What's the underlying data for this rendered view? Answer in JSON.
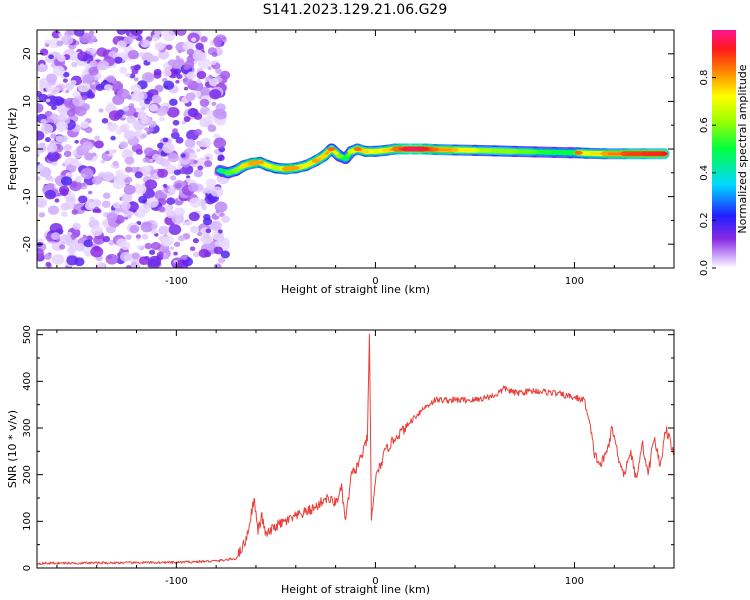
{
  "figure": {
    "title": "S141.2023.129.21.06.G29"
  },
  "chart_data": [
    {
      "type": "heatmap",
      "xlabel": "Height of straight line (km)",
      "ylabel": "Frequency (Hz)",
      "xlim": [
        -170,
        150
      ],
      "ylim": [
        -25,
        25
      ],
      "x_ticks": [
        -100,
        0,
        100
      ],
      "y_ticks": [
        -20,
        -10,
        0,
        10,
        20
      ],
      "colorbar": {
        "label": "Normalized spectral amplitude",
        "ticks": [
          "0.0",
          "0.2",
          "0.4",
          "0.6",
          "0.8"
        ],
        "range": [
          0,
          1
        ],
        "colormap": "rainbow (white-violet-blue-cyan-green-yellow-red-magenta)"
      },
      "noise_region_x": [
        -170,
        -75
      ],
      "signal_track": [
        {
          "x": -78,
          "y": -4.5,
          "v": 0.45
        },
        {
          "x": -74,
          "y": -5.0,
          "v": 0.55
        },
        {
          "x": -70,
          "y": -4.5,
          "v": 0.6
        },
        {
          "x": -66,
          "y": -3.5,
          "v": 0.75
        },
        {
          "x": -62,
          "y": -3.0,
          "v": 0.8
        },
        {
          "x": -58,
          "y": -2.8,
          "v": 0.8
        },
        {
          "x": -54,
          "y": -3.5,
          "v": 0.7
        },
        {
          "x": -50,
          "y": -4.0,
          "v": 0.65
        },
        {
          "x": -45,
          "y": -4.2,
          "v": 0.8
        },
        {
          "x": -40,
          "y": -4.0,
          "v": 0.8
        },
        {
          "x": -35,
          "y": -3.5,
          "v": 0.7
        },
        {
          "x": -30,
          "y": -2.5,
          "v": 0.8
        },
        {
          "x": -26,
          "y": -1.5,
          "v": 0.75
        },
        {
          "x": -22,
          "y": 0.0,
          "v": 0.85
        },
        {
          "x": -18,
          "y": -1.5,
          "v": 0.6
        },
        {
          "x": -15,
          "y": -2.0,
          "v": 0.5
        },
        {
          "x": -12,
          "y": -0.5,
          "v": 0.7
        },
        {
          "x": -9,
          "y": 0.0,
          "v": 0.85
        },
        {
          "x": -5,
          "y": -0.5,
          "v": 0.75
        },
        {
          "x": 0,
          "y": -0.5,
          "v": 0.7
        },
        {
          "x": 5,
          "y": -0.3,
          "v": 0.75
        },
        {
          "x": 10,
          "y": 0.0,
          "v": 0.85
        },
        {
          "x": 15,
          "y": 0.0,
          "v": 0.95
        },
        {
          "x": 20,
          "y": 0.0,
          "v": 0.97
        },
        {
          "x": 25,
          "y": 0.0,
          "v": 0.93
        },
        {
          "x": 30,
          "y": -0.1,
          "v": 0.85
        },
        {
          "x": 40,
          "y": -0.2,
          "v": 0.78
        },
        {
          "x": 50,
          "y": -0.3,
          "v": 0.7
        },
        {
          "x": 60,
          "y": -0.4,
          "v": 0.6
        },
        {
          "x": 70,
          "y": -0.5,
          "v": 0.6
        },
        {
          "x": 80,
          "y": -0.6,
          "v": 0.55
        },
        {
          "x": 90,
          "y": -0.7,
          "v": 0.5
        },
        {
          "x": 98,
          "y": -0.8,
          "v": 0.5
        },
        {
          "x": 102,
          "y": -0.8,
          "v": 0.85
        },
        {
          "x": 106,
          "y": -0.9,
          "v": 0.7
        },
        {
          "x": 115,
          "y": -1.0,
          "v": 0.8
        },
        {
          "x": 125,
          "y": -1.0,
          "v": 0.88
        },
        {
          "x": 135,
          "y": -1.0,
          "v": 0.9
        },
        {
          "x": 145,
          "y": -1.0,
          "v": 0.92
        }
      ]
    },
    {
      "type": "line",
      "xlabel": "Height of straight line (km)",
      "ylabel": "SNR (10 * v/v)",
      "xlim": [
        -170,
        150
      ],
      "ylim": [
        0,
        510
      ],
      "x_ticks": [
        -100,
        0,
        100
      ],
      "y_ticks": [
        0,
        100,
        200,
        300,
        400,
        500
      ],
      "color": "#e8413a",
      "x": [
        -170,
        -100,
        -80,
        -70,
        -65,
        -63,
        -61,
        -59,
        -57,
        -55,
        -50,
        -45,
        -40,
        -35,
        -30,
        -25,
        -20,
        -17,
        -15,
        -12,
        -10,
        -8,
        -6,
        -4,
        -3,
        -2,
        0,
        5,
        10,
        15,
        20,
        25,
        30,
        40,
        50,
        60,
        65,
        70,
        80,
        90,
        100,
        105,
        108,
        110,
        113,
        116,
        119,
        122,
        125,
        128,
        131,
        134,
        137,
        140,
        143,
        146,
        150
      ],
      "y": [
        10,
        12,
        15,
        20,
        60,
        100,
        150,
        80,
        110,
        70,
        90,
        100,
        110,
        120,
        130,
        150,
        140,
        170,
        100,
        200,
        210,
        230,
        250,
        280,
        500,
        100,
        190,
        250,
        280,
        300,
        325,
        345,
        360,
        360,
        360,
        370,
        385,
        375,
        380,
        375,
        365,
        360,
        300,
        245,
        220,
        245,
        300,
        240,
        200,
        250,
        190,
        270,
        200,
        280,
        220,
        300,
        240
      ]
    }
  ]
}
